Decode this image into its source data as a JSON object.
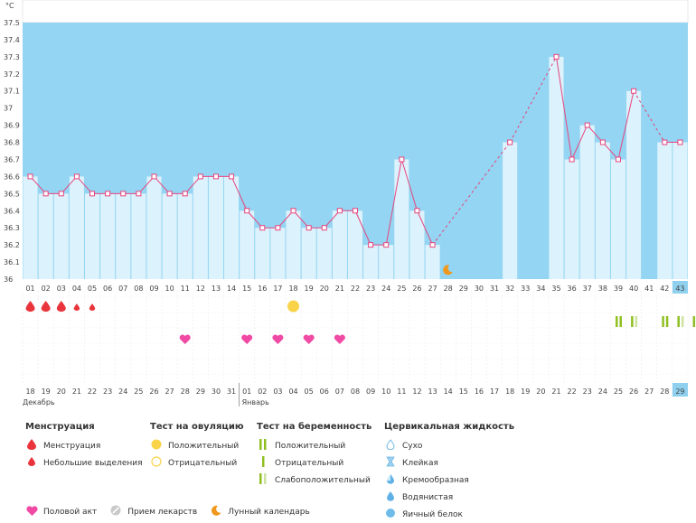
{
  "chart_data": {
    "type": "bar",
    "title": "",
    "unit_label": "°C",
    "ylim": [
      36,
      37.5
    ],
    "y_ticks": [
      "36",
      "36.1",
      "36.2",
      "36.3",
      "36.4",
      "36.5",
      "36.6",
      "36.7",
      "36.8",
      "36.9",
      "37",
      "37.1",
      "37.2",
      "37.3",
      "37.4",
      "37.5"
    ],
    "cycle_days": [
      "01",
      "02",
      "03",
      "04",
      "05",
      "06",
      "07",
      "08",
      "09",
      "10",
      "11",
      "12",
      "13",
      "14",
      "15",
      "16",
      "17",
      "18",
      "19",
      "20",
      "21",
      "22",
      "23",
      "24",
      "25",
      "26",
      "27",
      "28",
      "29",
      "30",
      "31",
      "32",
      "33",
      "34",
      "35",
      "36",
      "37",
      "38",
      "39",
      "40",
      "41",
      "42",
      "43"
    ],
    "temperatures": [
      36.6,
      36.5,
      36.5,
      36.6,
      36.5,
      36.5,
      36.5,
      36.5,
      36.6,
      36.5,
      36.5,
      36.6,
      36.6,
      36.6,
      36.4,
      36.3,
      36.3,
      36.4,
      36.3,
      36.3,
      36.4,
      36.4,
      36.2,
      36.2,
      36.7,
      36.4,
      36.2,
      null,
      null,
      null,
      null,
      36.8,
      null,
      null,
      37.3,
      36.7,
      36.9,
      36.8,
      36.7,
      37.1,
      null,
      36.8,
      36.8
    ],
    "today_index": 42,
    "calendar_dates": [
      "18",
      "19",
      "20",
      "21",
      "22",
      "23",
      "24",
      "25",
      "26",
      "27",
      "28",
      "29",
      "30",
      "31",
      "01",
      "02",
      "03",
      "04",
      "05",
      "06",
      "07",
      "08",
      "09",
      "10",
      "11",
      "12",
      "13",
      "14",
      "15",
      "16",
      "17",
      "18",
      "19",
      "20",
      "21",
      "22",
      "23",
      "24",
      "25",
      "26",
      "27",
      "28",
      "29"
    ],
    "calendar_red": [
      5,
      6,
      12,
      13,
      19,
      20,
      26,
      27,
      33,
      34,
      40,
      41
    ],
    "months": [
      {
        "label": "Декабрь",
        "start_index": 0
      },
      {
        "label": "Январь",
        "start_index": 14
      }
    ],
    "events": {
      "menstruation_heavy": [
        0,
        1,
        2
      ],
      "menstruation_light": [
        3,
        4
      ],
      "ovulation_positive": [
        17
      ],
      "pregnancy_weak": [
        39,
        42
      ],
      "pregnancy_positive": [
        38,
        41,
        43
      ],
      "intercourse": [
        10,
        14,
        16,
        18,
        20
      ],
      "lunar": [
        27
      ]
    }
  },
  "legend": {
    "menstruation": {
      "title": "Менструация",
      "items": [
        "Менструация",
        "Небольшие выделения"
      ]
    },
    "ovulation": {
      "title": "Тест на овуляцию",
      "items": [
        "Положительный",
        "Отрицательный"
      ]
    },
    "pregnancy": {
      "title": "Тест на беременность",
      "items": [
        "Положительный",
        "Отрицательный",
        "Слабоположительный"
      ]
    },
    "cervical": {
      "title": "Цервикальная жидкость",
      "items": [
        "Сухо",
        "Клейкая",
        "Кремообразная",
        "Водянистая",
        "Яичный белок"
      ]
    },
    "bottom": [
      "Половой акт",
      "Прием лекарств",
      "Лунный календарь"
    ]
  },
  "colors": {
    "bg": "#93d5f2",
    "bar": "#dcf2fc",
    "line": "#e8457e",
    "heart": "#f04aa5",
    "drop": "#e9343c",
    "ovu": "#f9d44a",
    "preg": "#8fbf21",
    "preg_weak": "#cfe3a0",
    "today": "#8fd0ef",
    "red_date": "#e8457e"
  }
}
